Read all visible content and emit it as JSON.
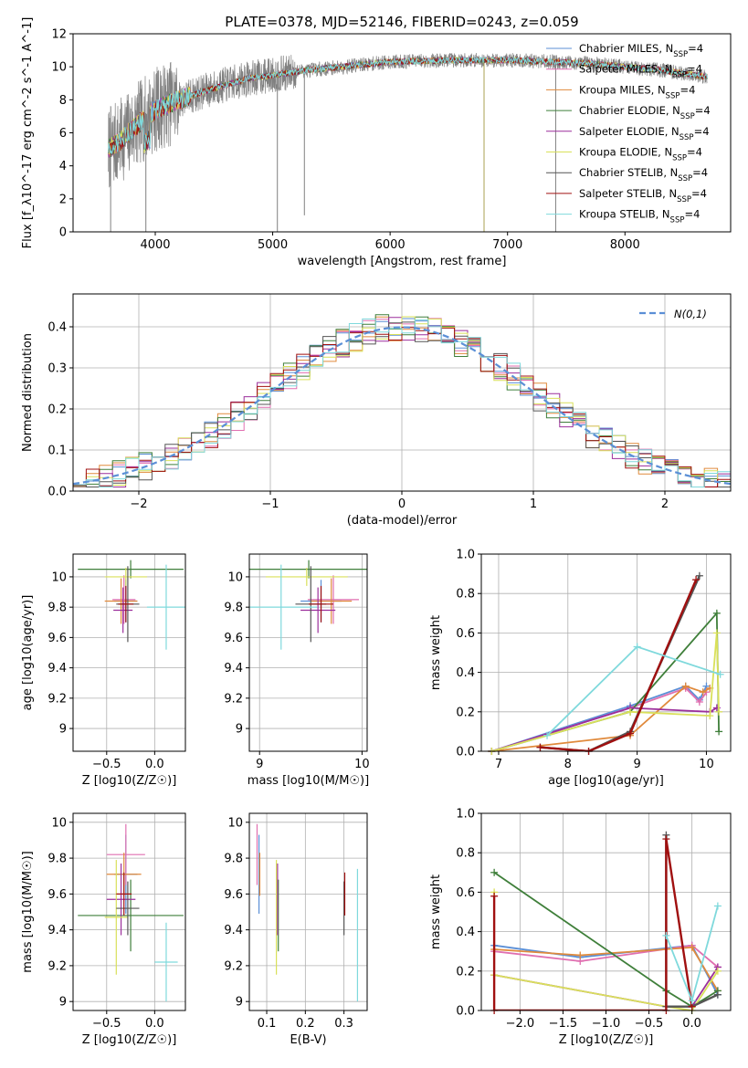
{
  "page": {
    "title": "PLATE=0378, MJD=52146, FIBERID=0243, z=0.059"
  },
  "series_styles": [
    {
      "name": "Chabrier MILES",
      "color": "#5b8fd6"
    },
    {
      "name": "Salpeter MILES",
      "color": "#e06fb0"
    },
    {
      "name": "Kroupa MILES",
      "color": "#e08a3c"
    },
    {
      "name": "Chabrier ELODIE",
      "color": "#3f7f3a"
    },
    {
      "name": "Salpeter ELODIE",
      "color": "#9b2f9b"
    },
    {
      "name": "Kroupa ELODIE",
      "color": "#d9e05a"
    },
    {
      "name": "Chabrier STELIB",
      "color": "#555555"
    },
    {
      "name": "Salpeter STELIB",
      "color": "#a01010"
    },
    {
      "name": "Kroupa STELIB",
      "color": "#7fd9dc"
    }
  ],
  "chart_data": [
    {
      "id": "spectrum",
      "type": "line",
      "title": "PLATE=0378, MJD=52146, FIBERID=0243, z=0.059",
      "xlabel": "wavelength [Angstrom, rest frame]",
      "ylabel": "Flux [f_λ10^-17 erg cm^-2 s^-1 A^-1]",
      "xlim": [
        3300,
        8900
      ],
      "ylim": [
        0,
        12
      ],
      "xticks": [
        4000,
        5000,
        6000,
        7000,
        8000
      ],
      "yticks": [
        0,
        2,
        4,
        6,
        8,
        10,
        12
      ],
      "legend": {
        "placement": "right",
        "suffix": "N_SSP=4"
      },
      "data_color": "#808080",
      "continuum_knots": {
        "x": [
          3600,
          3700,
          3800,
          3900,
          4000,
          4200,
          4500,
          4800,
          5000,
          5300,
          5600,
          6000,
          6500,
          7000,
          7400,
          7700,
          8000,
          8300,
          8500,
          8700
        ],
        "y": [
          5.0,
          5.5,
          6.2,
          6.8,
          7.4,
          8.0,
          8.7,
          9.3,
          9.5,
          9.8,
          10.0,
          10.3,
          10.4,
          10.4,
          10.3,
          10.2,
          10.0,
          9.8,
          9.6,
          9.4
        ]
      },
      "wavelength_range": [
        3600,
        8700
      ]
    },
    {
      "id": "residuals",
      "type": "histogram",
      "xlabel": "(data-model)/error",
      "ylabel": "Normed distribution",
      "xlim": [
        -2.5,
        2.5
      ],
      "ylim": [
        0,
        0.48
      ],
      "xticks": [
        -2,
        -1,
        0,
        1,
        2
      ],
      "yticks": [
        0.0,
        0.1,
        0.2,
        0.3,
        0.4
      ],
      "legend": {
        "placement": "top-right",
        "label": "N(0,1)",
        "color": "#5b8fd6"
      },
      "bin_width": 0.1,
      "bin_start": -2.5
    },
    {
      "id": "z-age",
      "type": "errorbar",
      "xlabel": "Z [log10(Z/Z☉)]",
      "ylabel": "age [log10(age/yr)]",
      "xlim": [
        -0.85,
        0.32
      ],
      "ylim": [
        8.85,
        10.15
      ],
      "xticks": [
        -0.5,
        0.0
      ],
      "xtick_labels": [
        "−0.5",
        "0.0"
      ],
      "yticks": [
        9.0,
        9.2,
        9.4,
        9.6,
        9.8,
        10.0
      ],
      "points": [
        {
          "x": -0.3,
          "xerr": 0.12,
          "y": 9.84,
          "yerr": 0.14
        },
        {
          "x": -0.32,
          "xerr": 0.12,
          "y": 9.85,
          "yerr": 0.16
        },
        {
          "x": -0.35,
          "xerr": 0.17,
          "y": 9.84,
          "yerr": 0.15
        },
        {
          "x": -0.25,
          "xerr": 0.55,
          "y": 10.05,
          "yerr": 0.06
        },
        {
          "x": -0.33,
          "xerr": 0.1,
          "y": 9.78,
          "yerr": 0.15
        },
        {
          "x": -0.3,
          "xerr": 0.22,
          "y": 10.0,
          "yerr": 0.06
        },
        {
          "x": -0.28,
          "xerr": 0.12,
          "y": 9.82,
          "yerr": 0.25
        },
        {
          "x": -0.3,
          "xerr": 0.08,
          "y": 9.82,
          "yerr": 0.12
        },
        {
          "x": 0.12,
          "xerr": 0.2,
          "y": 9.8,
          "yerr": 0.28
        }
      ]
    },
    {
      "id": "mass-age",
      "type": "errorbar",
      "xlabel": "mass [log10(M/M☉)]",
      "ylabel": "",
      "xlim": [
        8.9,
        10.05
      ],
      "ylim": [
        8.85,
        10.15
      ],
      "xticks": [
        9,
        10
      ],
      "yticks": [
        9.0,
        9.2,
        9.4,
        9.6,
        9.8,
        10.0
      ],
      "points": [
        {
          "x": 9.6,
          "xerr": 0.2,
          "y": 9.84,
          "yerr": 0.14
        },
        {
          "x": 9.72,
          "xerr": 0.25,
          "y": 9.85,
          "yerr": 0.16
        },
        {
          "x": 9.7,
          "xerr": 0.2,
          "y": 9.84,
          "yerr": 0.15
        },
        {
          "x": 9.48,
          "xerr": 0.6,
          "y": 10.05,
          "yerr": 0.06
        },
        {
          "x": 9.57,
          "xerr": 0.17,
          "y": 9.78,
          "yerr": 0.15
        },
        {
          "x": 9.46,
          "xerr": 0.4,
          "y": 10.0,
          "yerr": 0.06
        },
        {
          "x": 9.5,
          "xerr": 0.15,
          "y": 9.82,
          "yerr": 0.25
        },
        {
          "x": 9.6,
          "xerr": 0.12,
          "y": 9.82,
          "yerr": 0.12
        },
        {
          "x": 9.21,
          "xerr": 0.35,
          "y": 9.8,
          "yerr": 0.28
        }
      ]
    },
    {
      "id": "age-weight",
      "type": "line",
      "xlabel": "age [log10(age/yr)]",
      "ylabel": "mass weight",
      "xlim": [
        6.75,
        10.35
      ],
      "ylim": [
        0,
        1.0
      ],
      "xticks": [
        7,
        8,
        9,
        10
      ],
      "yticks": [
        0.0,
        0.2,
        0.4,
        0.6,
        0.8,
        1.0
      ],
      "series": [
        {
          "x": [
            6.9,
            8.9,
            9.7,
            9.9,
            10.0
          ],
          "y": [
            0.0,
            0.23,
            0.33,
            0.26,
            0.33
          ]
        },
        {
          "x": [
            6.9,
            8.9,
            9.7,
            9.9,
            10.0
          ],
          "y": [
            0.0,
            0.22,
            0.32,
            0.25,
            0.3
          ]
        },
        {
          "x": [
            6.9,
            8.9,
            9.7,
            9.95,
            10.05
          ],
          "y": [
            0.0,
            0.08,
            0.33,
            0.3,
            0.32
          ]
        },
        {
          "x": [
            6.9,
            8.9,
            10.15,
            10.18
          ],
          "y": [
            0.0,
            0.2,
            0.7,
            0.1
          ]
        },
        {
          "x": [
            6.9,
            8.9,
            10.05,
            10.15
          ],
          "y": [
            0.0,
            0.22,
            0.2,
            0.22
          ]
        },
        {
          "x": [
            6.9,
            8.9,
            10.05,
            10.15,
            10.18
          ],
          "y": [
            0.0,
            0.2,
            0.18,
            0.6,
            0.2
          ]
        },
        {
          "x": [
            7.6,
            8.3,
            8.9,
            9.9
          ],
          "y": [
            0.02,
            0.0,
            0.1,
            0.89
          ]
        },
        {
          "x": [
            7.6,
            8.3,
            8.9,
            9.85
          ],
          "y": [
            0.02,
            0.0,
            0.09,
            0.87
          ]
        },
        {
          "x": [
            7.7,
            9.0,
            10.2
          ],
          "y": [
            0.08,
            0.53,
            0.39
          ]
        }
      ]
    },
    {
      "id": "z-mass",
      "type": "errorbar",
      "xlabel": "Z [log10(Z/Z☉)]",
      "ylabel": "mass [log10(M/M☉)]",
      "xlim": [
        -0.85,
        0.32
      ],
      "ylim": [
        8.95,
        10.05
      ],
      "xticks": [
        -0.5,
        0.0
      ],
      "xtick_labels": [
        "−0.5",
        "0.0"
      ],
      "yticks": [
        9.0,
        9.2,
        9.4,
        9.6,
        9.8,
        10.0
      ],
      "points": [
        {
          "x": -0.3,
          "xerr": 0.12,
          "y": 9.71,
          "yerr": 0.22
        },
        {
          "x": -0.3,
          "xerr": 0.2,
          "y": 9.82,
          "yerr": 0.17
        },
        {
          "x": -0.32,
          "xerr": 0.18,
          "y": 9.71,
          "yerr": 0.12
        },
        {
          "x": -0.25,
          "xerr": 0.55,
          "y": 9.48,
          "yerr": 0.2
        },
        {
          "x": -0.35,
          "xerr": 0.15,
          "y": 9.57,
          "yerr": 0.2
        },
        {
          "x": -0.4,
          "xerr": 0.12,
          "y": 9.47,
          "yerr": 0.32
        },
        {
          "x": -0.28,
          "xerr": 0.12,
          "y": 9.52,
          "yerr": 0.15
        },
        {
          "x": -0.32,
          "xerr": 0.08,
          "y": 9.6,
          "yerr": 0.12
        },
        {
          "x": 0.12,
          "xerr": 0.12,
          "y": 9.22,
          "yerr": 0.22
        }
      ]
    },
    {
      "id": "ebv-mass",
      "type": "errorbar",
      "xlabel": "E(B-V)",
      "ylabel": "",
      "xlim": [
        0.055,
        0.36
      ],
      "ylim": [
        8.95,
        10.05
      ],
      "xticks": [
        0.1,
        0.2,
        0.3
      ],
      "yticks": [
        9.0,
        9.2,
        9.4,
        9.6,
        9.8,
        10.0
      ],
      "points": [
        {
          "x": 0.08,
          "xerr": 0.0,
          "y": 9.71,
          "yerr": 0.22
        },
        {
          "x": 0.075,
          "xerr": 0.0,
          "y": 9.82,
          "yerr": 0.17
        },
        {
          "x": 0.082,
          "xerr": 0.0,
          "y": 9.71,
          "yerr": 0.12
        },
        {
          "x": 0.13,
          "xerr": 0.0,
          "y": 9.48,
          "yerr": 0.2
        },
        {
          "x": 0.128,
          "xerr": 0.0,
          "y": 9.57,
          "yerr": 0.2
        },
        {
          "x": 0.125,
          "xerr": 0.0,
          "y": 9.47,
          "yerr": 0.32
        },
        {
          "x": 0.3,
          "xerr": 0.0,
          "y": 9.52,
          "yerr": 0.15
        },
        {
          "x": 0.302,
          "xerr": 0.0,
          "y": 9.6,
          "yerr": 0.12
        },
        {
          "x": 0.335,
          "xerr": 0.0,
          "y": 9.37,
          "yerr": 0.37
        }
      ]
    },
    {
      "id": "z-weight",
      "type": "line",
      "xlabel": "Z [log10(Z/Z☉)]",
      "ylabel": "mass weight",
      "xlim": [
        -2.45,
        0.45
      ],
      "ylim": [
        0,
        1.0
      ],
      "xticks": [
        -2.0,
        -1.5,
        -1.0,
        -0.5,
        0.0
      ],
      "xtick_labels": [
        "−2.0",
        "−1.5",
        "−1.0",
        "−0.5",
        "0.0"
      ],
      "yticks": [
        0.0,
        0.2,
        0.4,
        0.6,
        0.8,
        1.0
      ],
      "series": [
        {
          "x": [
            -2.3,
            -1.3,
            0.0,
            0.3
          ],
          "y": [
            0.33,
            0.27,
            0.33,
            0.08
          ]
        },
        {
          "x": [
            -2.3,
            -1.3,
            0.0,
            0.3
          ],
          "y": [
            0.3,
            0.25,
            0.33,
            0.22
          ]
        },
        {
          "x": [
            -2.3,
            -1.3,
            0.0,
            0.3
          ],
          "y": [
            0.31,
            0.28,
            0.32,
            0.1
          ]
        },
        {
          "x": [
            -2.3,
            -0.3,
            0.0,
            0.3
          ],
          "y": [
            0.7,
            0.1,
            0.02,
            0.1
          ]
        },
        {
          "x": [
            -2.3,
            -0.3,
            0.0,
            0.3
          ],
          "y": [
            0.18,
            0.02,
            0.02,
            0.22
          ]
        },
        {
          "x": [
            -2.3,
            -2.3,
            -0.3,
            0.0,
            0.3
          ],
          "y": [
            0.6,
            0.18,
            0.02,
            0.0,
            0.2
          ]
        },
        {
          "x": [
            -0.3,
            -0.3,
            0.0,
            0.3
          ],
          "y": [
            0.89,
            0.02,
            0.02,
            0.08
          ]
        },
        {
          "x": [
            -2.3,
            -2.3,
            -0.3,
            -0.3,
            0.0
          ],
          "y": [
            0.58,
            0.0,
            0.0,
            0.87,
            0.02
          ]
        },
        {
          "x": [
            -0.3,
            0.0,
            0.3
          ],
          "y": [
            0.38,
            0.05,
            0.53
          ]
        }
      ]
    }
  ]
}
